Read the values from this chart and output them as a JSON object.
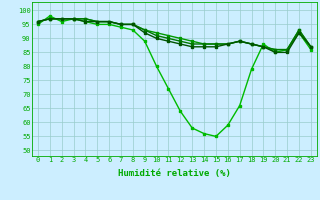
{
  "xlabel": "Humidité relative (%)",
  "ylabel": "",
  "background_color": "#cceeff",
  "grid_color": "#99cccc",
  "xlim": [
    -0.5,
    23.5
  ],
  "ylim": [
    48,
    103
  ],
  "yticks": [
    50,
    55,
    60,
    65,
    70,
    75,
    80,
    85,
    90,
    95,
    100
  ],
  "xticks": [
    0,
    1,
    2,
    3,
    4,
    5,
    6,
    7,
    8,
    9,
    10,
    11,
    12,
    13,
    14,
    15,
    16,
    17,
    18,
    19,
    20,
    21,
    22,
    23
  ],
  "lines": [
    {
      "x": [
        0,
        1,
        2,
        3,
        4,
        5,
        6,
        7,
        8,
        9,
        10,
        11,
        12,
        13,
        14,
        15,
        16,
        17,
        18,
        19,
        20,
        21,
        22,
        23
      ],
      "y": [
        95,
        98,
        96,
        97,
        96,
        95,
        95,
        94,
        93,
        89,
        80,
        72,
        64,
        58,
        56,
        55,
        59,
        66,
        79,
        88,
        85,
        86,
        92,
        86
      ]
    },
    {
      "x": [
        0,
        1,
        2,
        3,
        4,
        5,
        6,
        7,
        8,
        9,
        10,
        11,
        12,
        13,
        14,
        15,
        16,
        17,
        18,
        19,
        20,
        21,
        22,
        23
      ],
      "y": [
        96,
        97,
        97,
        97,
        97,
        96,
        96,
        95,
        95,
        93,
        92,
        91,
        90,
        89,
        88,
        88,
        88,
        89,
        88,
        87,
        86,
        86,
        93,
        87
      ]
    },
    {
      "x": [
        0,
        1,
        2,
        3,
        4,
        5,
        6,
        7,
        8,
        9,
        10,
        11,
        12,
        13,
        14,
        15,
        16,
        17,
        18,
        19,
        20,
        21,
        22,
        23
      ],
      "y": [
        96,
        97,
        97,
        97,
        97,
        96,
        96,
        95,
        95,
        93,
        91,
        90,
        89,
        88,
        88,
        88,
        88,
        89,
        88,
        87,
        86,
        86,
        93,
        87
      ]
    },
    {
      "x": [
        0,
        1,
        2,
        3,
        4,
        5,
        6,
        7,
        8,
        9,
        10,
        11,
        12,
        13,
        14,
        15,
        16,
        17,
        18,
        19,
        20,
        21,
        22,
        23
      ],
      "y": [
        96,
        97,
        97,
        97,
        96,
        96,
        96,
        95,
        95,
        92,
        90,
        89,
        88,
        87,
        87,
        87,
        88,
        89,
        88,
        87,
        85,
        85,
        92,
        87
      ]
    }
  ],
  "line_colors": [
    "#00bb00",
    "#009900",
    "#007700",
    "#005500"
  ],
  "marker_size": 2.0,
  "line_width": 1.0,
  "tick_fontsize": 5.0,
  "xlabel_fontsize": 6.5
}
